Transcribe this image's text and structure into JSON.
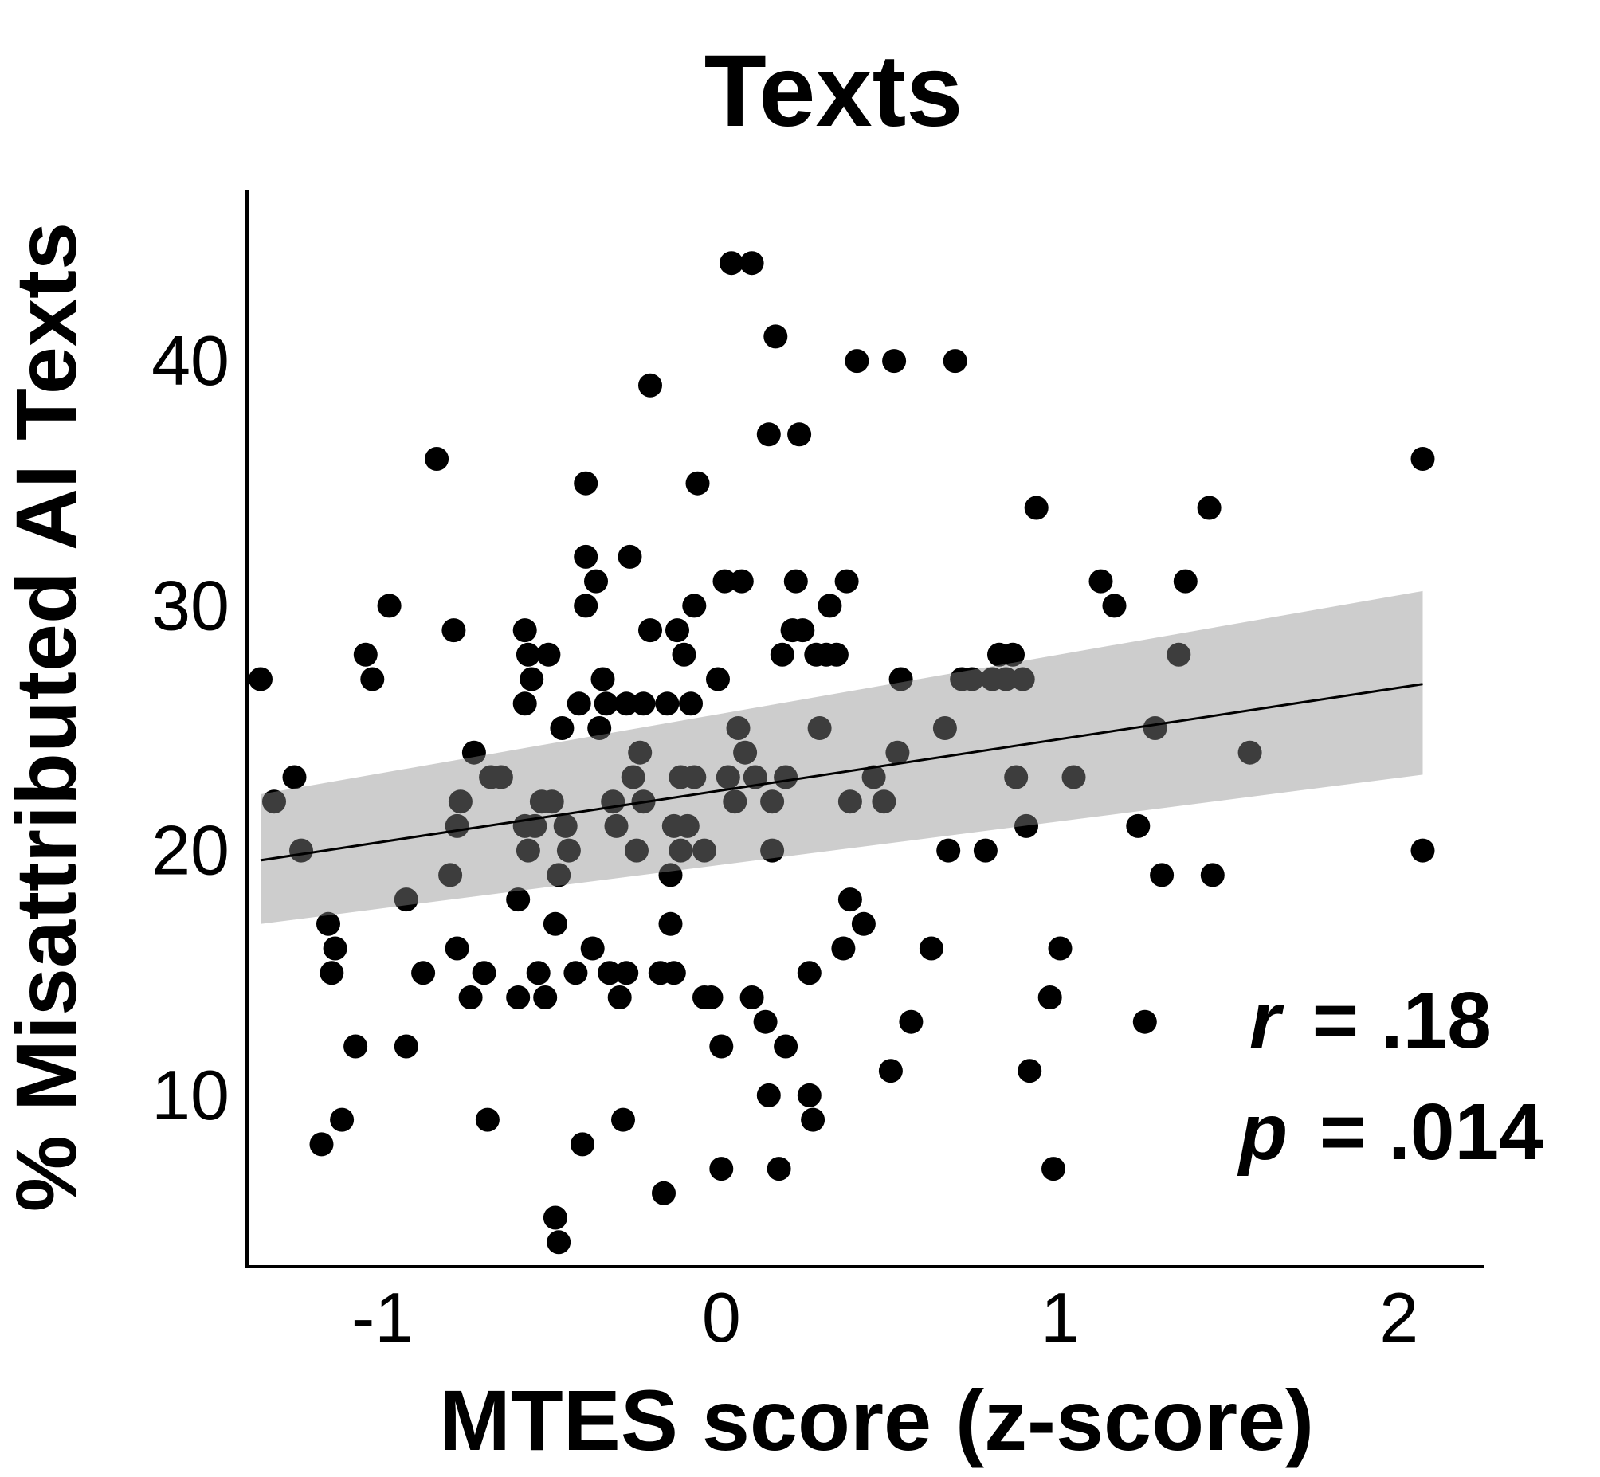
{
  "chart_data": {
    "type": "scatter",
    "title": "Texts",
    "xlabel": "MTES score (z-score)",
    "ylabel": "% Misattributed AI Texts",
    "xlim": [
      -1.4,
      2.25
    ],
    "ylim": [
      3.0,
      47.0
    ],
    "xticks": [
      -1,
      0,
      1,
      2
    ],
    "xtick_labels": [
      "-1",
      "0",
      "1",
      "2"
    ],
    "yticks": [
      10,
      20,
      30,
      40
    ],
    "ytick_labels": [
      "10",
      "20",
      "30",
      "40"
    ],
    "grid": false,
    "points": [
      [
        -1.36,
        27
      ],
      [
        -1.32,
        22
      ],
      [
        -1.26,
        23
      ],
      [
        -1.24,
        20
      ],
      [
        -1.18,
        8
      ],
      [
        -1.16,
        17
      ],
      [
        -1.14,
        16
      ],
      [
        -1.15,
        15
      ],
      [
        -1.12,
        9
      ],
      [
        -1.08,
        12
      ],
      [
        -1.05,
        28
      ],
      [
        -1.03,
        27
      ],
      [
        -0.98,
        30
      ],
      [
        -0.93,
        18
      ],
      [
        -0.93,
        12
      ],
      [
        -0.88,
        15
      ],
      [
        -0.84,
        36
      ],
      [
        -0.8,
        19
      ],
      [
        -0.79,
        29
      ],
      [
        -0.78,
        21
      ],
      [
        -0.78,
        16
      ],
      [
        -0.77,
        22
      ],
      [
        -0.74,
        14
      ],
      [
        -0.73,
        24
      ],
      [
        -0.7,
        15
      ],
      [
        -0.69,
        9
      ],
      [
        -0.68,
        23
      ],
      [
        -0.65,
        23
      ],
      [
        -0.6,
        18
      ],
      [
        -0.6,
        14
      ],
      [
        -0.58,
        29
      ],
      [
        -0.58,
        26
      ],
      [
        -0.58,
        21
      ],
      [
        -0.57,
        28
      ],
      [
        -0.57,
        20
      ],
      [
        -0.56,
        27
      ],
      [
        -0.55,
        21
      ],
      [
        -0.54,
        15
      ],
      [
        -0.53,
        22
      ],
      [
        -0.52,
        14
      ],
      [
        -0.51,
        28
      ],
      [
        -0.5,
        22
      ],
      [
        -0.49,
        17
      ],
      [
        -0.49,
        5
      ],
      [
        -0.48,
        19
      ],
      [
        -0.48,
        4
      ],
      [
        -0.47,
        25
      ],
      [
        -0.46,
        21
      ],
      [
        -0.45,
        20
      ],
      [
        -0.43,
        15
      ],
      [
        -0.42,
        26
      ],
      [
        -0.41,
        8
      ],
      [
        -0.4,
        35
      ],
      [
        -0.4,
        32
      ],
      [
        -0.4,
        30
      ],
      [
        -0.38,
        16
      ],
      [
        -0.37,
        31
      ],
      [
        -0.36,
        25
      ],
      [
        -0.35,
        27
      ],
      [
        -0.34,
        26
      ],
      [
        -0.33,
        15
      ],
      [
        -0.32,
        22
      ],
      [
        -0.31,
        21
      ],
      [
        -0.3,
        14
      ],
      [
        -0.29,
        9
      ],
      [
        -0.28,
        26
      ],
      [
        -0.28,
        15
      ],
      [
        -0.27,
        32
      ],
      [
        -0.26,
        23
      ],
      [
        -0.25,
        20
      ],
      [
        -0.24,
        24
      ],
      [
        -0.23,
        22
      ],
      [
        -0.23,
        26
      ],
      [
        -0.21,
        29
      ],
      [
        -0.21,
        39
      ],
      [
        -0.18,
        15
      ],
      [
        -0.17,
        6
      ],
      [
        -0.16,
        26
      ],
      [
        -0.15,
        17
      ],
      [
        -0.15,
        19
      ],
      [
        -0.14,
        21
      ],
      [
        -0.14,
        15
      ],
      [
        -0.13,
        29
      ],
      [
        -0.12,
        23
      ],
      [
        -0.12,
        20
      ],
      [
        -0.11,
        28
      ],
      [
        -0.1,
        21
      ],
      [
        -0.09,
        26
      ],
      [
        -0.08,
        30
      ],
      [
        -0.08,
        23
      ],
      [
        -0.07,
        35
      ],
      [
        -0.05,
        20
      ],
      [
        -0.05,
        14
      ],
      [
        -0.03,
        14
      ],
      [
        -0.01,
        27
      ],
      [
        0.0,
        12
      ],
      [
        0.0,
        7
      ],
      [
        0.01,
        31
      ],
      [
        0.02,
        23
      ],
      [
        0.03,
        44
      ],
      [
        0.04,
        22
      ],
      [
        0.05,
        25
      ],
      [
        0.06,
        31
      ],
      [
        0.07,
        24
      ],
      [
        0.09,
        44
      ],
      [
        0.09,
        14
      ],
      [
        0.1,
        23
      ],
      [
        0.13,
        13
      ],
      [
        0.14,
        37
      ],
      [
        0.14,
        10
      ],
      [
        0.15,
        22
      ],
      [
        0.15,
        20
      ],
      [
        0.16,
        41
      ],
      [
        0.17,
        7
      ],
      [
        0.18,
        28
      ],
      [
        0.19,
        23
      ],
      [
        0.19,
        12
      ],
      [
        0.21,
        29
      ],
      [
        0.22,
        31
      ],
      [
        0.23,
        37
      ],
      [
        0.24,
        29
      ],
      [
        0.26,
        15
      ],
      [
        0.26,
        10
      ],
      [
        0.27,
        9
      ],
      [
        0.28,
        28
      ],
      [
        0.29,
        25
      ],
      [
        0.31,
        28
      ],
      [
        0.32,
        30
      ],
      [
        0.34,
        28
      ],
      [
        0.36,
        16
      ],
      [
        0.37,
        31
      ],
      [
        0.38,
        22
      ],
      [
        0.38,
        18
      ],
      [
        0.4,
        40
      ],
      [
        0.42,
        17
      ],
      [
        0.45,
        23
      ],
      [
        0.48,
        22
      ],
      [
        0.5,
        11
      ],
      [
        0.51,
        40
      ],
      [
        0.52,
        24
      ],
      [
        0.53,
        27
      ],
      [
        0.56,
        13
      ],
      [
        0.62,
        16
      ],
      [
        0.66,
        25
      ],
      [
        0.67,
        20
      ],
      [
        0.69,
        40
      ],
      [
        0.71,
        27
      ],
      [
        0.74,
        27
      ],
      [
        0.78,
        20
      ],
      [
        0.8,
        27
      ],
      [
        0.82,
        28
      ],
      [
        0.84,
        27
      ],
      [
        0.86,
        28
      ],
      [
        0.87,
        23
      ],
      [
        0.89,
        27
      ],
      [
        0.9,
        21
      ],
      [
        0.91,
        11
      ],
      [
        0.93,
        34
      ],
      [
        0.97,
        14
      ],
      [
        0.98,
        7
      ],
      [
        1.0,
        16
      ],
      [
        1.04,
        23
      ],
      [
        1.12,
        31
      ],
      [
        1.16,
        30
      ],
      [
        1.23,
        21
      ],
      [
        1.25,
        13
      ],
      [
        1.28,
        25
      ],
      [
        1.3,
        19
      ],
      [
        1.35,
        28
      ],
      [
        1.37,
        31
      ],
      [
        1.44,
        34
      ],
      [
        1.45,
        19
      ],
      [
        1.56,
        24
      ],
      [
        2.07,
        36
      ],
      [
        2.07,
        20
      ]
    ],
    "fit_line": {
      "x": [
        -1.36,
        2.07
      ],
      "y": [
        19.6,
        26.8
      ],
      "ci_lower": [
        17.0,
        23.1
      ],
      "ci_upper": [
        22.3,
        30.6
      ],
      "colors": {
        "line": "#000000",
        "band": "#b0b0b0"
      }
    },
    "point_color": "#000000",
    "annotation": {
      "r_var": "r",
      "r_value": "= .18",
      "p_var": "p",
      "p_value": "= .014"
    }
  }
}
